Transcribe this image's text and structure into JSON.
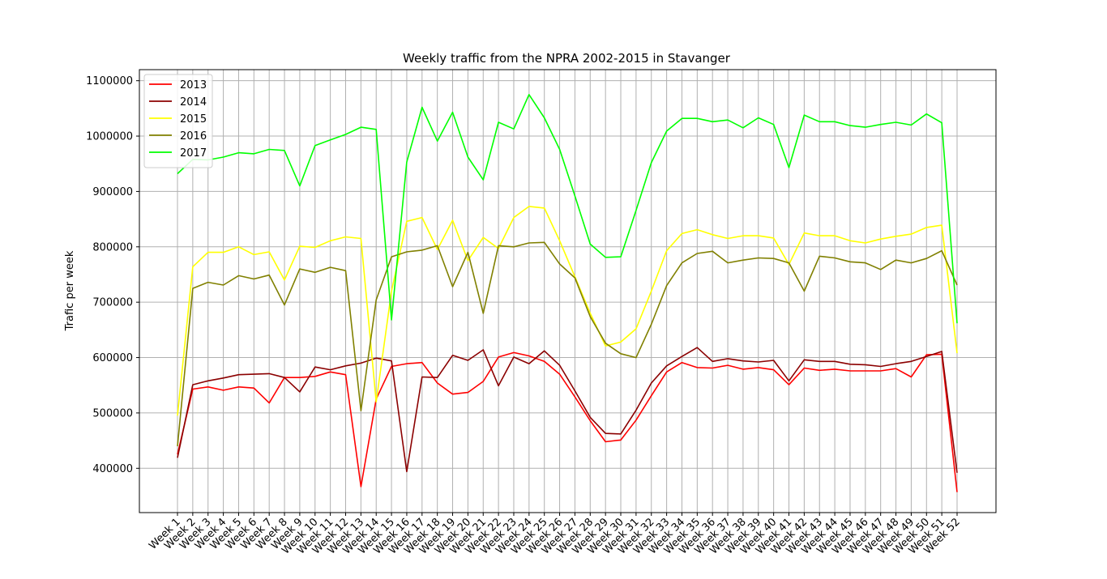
{
  "chart_data": {
    "type": "line",
    "title": "Weekly traffic from the NPRA 2002-2015 in Stavanger",
    "xlabel": "",
    "ylabel": "Trafic per week",
    "ylim": [
      320000,
      1120000
    ],
    "yticks": [
      400000,
      500000,
      600000,
      700000,
      800000,
      900000,
      1000000,
      1100000
    ],
    "ytick_labels": [
      "400000",
      "500000",
      "600000",
      "700000",
      "800000",
      "900000",
      "1000000",
      "1100000"
    ],
    "grid": true,
    "legend_position": "top-left",
    "categories": [
      "Week 1",
      "Week 2",
      "Week 3",
      "Week 4",
      "Week 5",
      "Week 6",
      "Week 7",
      "Week 8",
      "Week 9",
      "Week 10",
      "Week 11",
      "Week 12",
      "Week 13",
      "Week 14",
      "Week 15",
      "Week 16",
      "Week 17",
      "Week 18",
      "Week 19",
      "Week 20",
      "Week 21",
      "Week 22",
      "Week 23",
      "Week 24",
      "Week 25",
      "Week 26",
      "Week 27",
      "Week 28",
      "Week 29",
      "Week 30",
      "Week 31",
      "Week 32",
      "Week 33",
      "Week 34",
      "Week 35",
      "Week 36",
      "Week 37",
      "Week 38",
      "Week 39",
      "Week 40",
      "Week 41",
      "Week 42",
      "Week 43",
      "Week 44",
      "Week 45",
      "Week 46",
      "Week 47",
      "Week 48",
      "Week 49",
      "Week 50",
      "Week 51",
      "Week 52"
    ],
    "series": [
      {
        "name": "2013",
        "color": "#ff0000",
        "values": [
          425000,
          543000,
          547000,
          541000,
          547000,
          545000,
          518000,
          564000,
          564000,
          566000,
          574000,
          569000,
          367000,
          525000,
          584000,
          589000,
          591000,
          554000,
          534000,
          537000,
          557000,
          601000,
          609000,
          603000,
          593000,
          570000,
          529000,
          486000,
          448000,
          451000,
          487000,
          531000,
          574000,
          591000,
          582000,
          581000,
          586000,
          579000,
          582000,
          578000,
          551000,
          581000,
          577000,
          579000,
          576000,
          576000,
          576000,
          580000,
          565000,
          605000,
          606000,
          357000
        ]
      },
      {
        "name": "2014",
        "color": "#8b0000",
        "values": [
          419000,
          551000,
          558000,
          563000,
          569000,
          570000,
          571000,
          564000,
          538000,
          583000,
          578000,
          585000,
          590000,
          599000,
          594000,
          394000,
          565000,
          564000,
          604000,
          595000,
          614000,
          549000,
          601000,
          589000,
          612000,
          586000,
          540000,
          492000,
          463000,
          462000,
          505000,
          554000,
          585000,
          602000,
          618000,
          593000,
          598000,
          594000,
          592000,
          595000,
          558000,
          596000,
          593000,
          593000,
          588000,
          587000,
          584000,
          589000,
          593000,
          602000,
          611000,
          392000
        ]
      },
      {
        "name": "2015",
        "color": "#ffff00",
        "values": [
          495000,
          764000,
          790000,
          790000,
          800000,
          786000,
          791000,
          740000,
          801000,
          799000,
          811000,
          818000,
          815000,
          520000,
          720000,
          846000,
          853000,
          795000,
          848000,
          775000,
          817000,
          797000,
          853000,
          873000,
          870000,
          811000,
          746000,
          680000,
          621000,
          628000,
          652000,
          720000,
          793000,
          824000,
          831000,
          822000,
          815000,
          820000,
          820000,
          816000,
          768000,
          825000,
          820000,
          820000,
          811000,
          807000,
          814000,
          819000,
          823000,
          835000,
          839000,
          608000
        ]
      },
      {
        "name": "2016",
        "color": "#808000",
        "values": [
          440000,
          725000,
          736000,
          731000,
          748000,
          742000,
          749000,
          695000,
          760000,
          754000,
          763000,
          757000,
          504000,
          704000,
          782000,
          791000,
          794000,
          802000,
          728000,
          790000,
          680000,
          802000,
          800000,
          807000,
          808000,
          769000,
          744000,
          674000,
          626000,
          607000,
          600000,
          660000,
          730000,
          771000,
          788000,
          792000,
          771000,
          776000,
          780000,
          779000,
          771000,
          720000,
          783000,
          780000,
          773000,
          771000,
          759000,
          776000,
          771000,
          779000,
          793000,
          731000
        ]
      },
      {
        "name": "2017",
        "color": "#00ff00",
        "values": [
          932000,
          958000,
          957000,
          962000,
          970000,
          968000,
          976000,
          974000,
          910000,
          983000,
          993000,
          1003000,
          1016000,
          1012000,
          668000,
          953000,
          1052000,
          991000,
          1043000,
          962000,
          921000,
          1025000,
          1013000,
          1075000,
          1033000,
          976000,
          892000,
          805000,
          781000,
          782000,
          866000,
          952000,
          1009000,
          1032000,
          1032000,
          1026000,
          1029000,
          1015000,
          1033000,
          1021000,
          943000,
          1038000,
          1026000,
          1026000,
          1019000,
          1016000,
          1021000,
          1025000,
          1020000,
          1040000,
          1024000,
          662000
        ]
      }
    ]
  }
}
